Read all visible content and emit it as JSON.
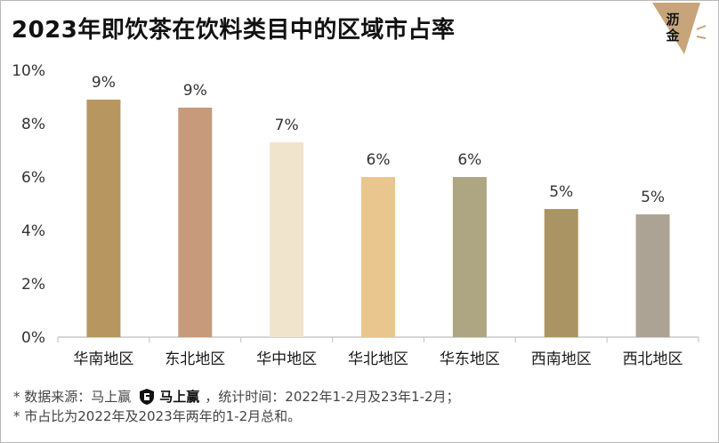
{
  "title": "2023年即饮茶在饮料类目中的区域市占率",
  "logo": {
    "line1": "沥",
    "line2": "金",
    "color": "#c8a47a"
  },
  "footnotes": {
    "line1_prefix": "* 数据来源：马上赢",
    "brand_name": "马上赢",
    "line1_suffix": "，统计时间：2022年1-2月及23年1-2月；",
    "line2": "* 市占比为2022年及2023年两年的1-2月总和。"
  },
  "chart_data": {
    "type": "bar",
    "categories": [
      "华南地区",
      "东北地区",
      "华中地区",
      "华北地区",
      "华东地区",
      "西南地区",
      "西北地区"
    ],
    "values": [
      8.9,
      8.6,
      7.3,
      6.0,
      6.0,
      4.8,
      4.6
    ],
    "data_labels": [
      "9%",
      "9%",
      "7%",
      "6%",
      "6%",
      "5%",
      "5%"
    ],
    "colors": [
      "#b89660",
      "#c69a7a",
      "#f1e4cc",
      "#e8c68e",
      "#aea683",
      "#ab9463",
      "#aca394"
    ],
    "y_ticks": [
      "0%",
      "2%",
      "4%",
      "6%",
      "8%",
      "10%"
    ],
    "y_tick_values": [
      0,
      2,
      4,
      6,
      8,
      10
    ],
    "ylim": [
      0,
      10
    ],
    "grid": false
  }
}
